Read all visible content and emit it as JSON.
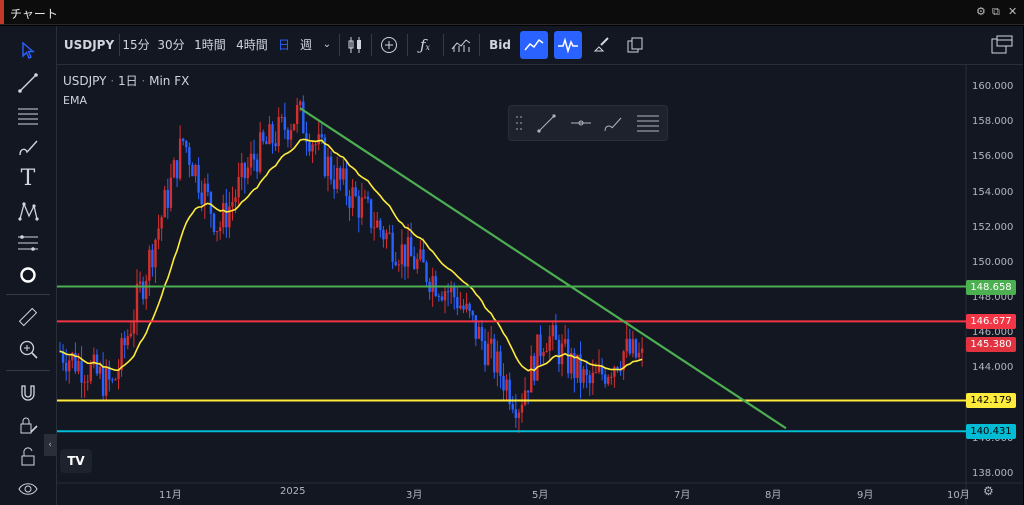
{
  "window": {
    "title": "チャート",
    "accent_color": "#c0392b"
  },
  "toolbar": {
    "symbol": "USDJPY",
    "intervals": [
      "15分",
      "30分",
      "1時間",
      "4時間",
      "日",
      "週"
    ],
    "active_interval": "日",
    "price_type": "Bid",
    "icons": [
      "candles-icon",
      "add-indicator-icon",
      "function-icon",
      "chart-style-icon",
      "line-chart-icon",
      "pulse-icon",
      "brush-icon",
      "copy-layout-icon",
      "layout-icon"
    ]
  },
  "left_toolbar": {
    "tools": [
      "cursor-icon",
      "trendline-icon",
      "horizontal-lines-icon",
      "brush-icon",
      "text-icon",
      "pattern-icon",
      "fib-icon",
      "circle-icon",
      "ruler-icon",
      "zoom-in-icon",
      "magnet-icon",
      "lock-edit-icon",
      "lock-icon",
      "eye-icon"
    ]
  },
  "legend": {
    "symbol": "USDJPY",
    "interval": "1日",
    "source": "Min FX",
    "indicator": "EMA"
  },
  "price_axis": {
    "ticks": [
      "160.000",
      "158.000",
      "156.000",
      "154.000",
      "152.000",
      "150.000",
      "148.000",
      "146.000",
      "144.000",
      "142.000",
      "140.000",
      "138.000"
    ]
  },
  "time_axis": {
    "ticks": [
      "11月",
      "2025",
      "3月",
      "5月",
      "7月",
      "8月",
      "9月",
      "10月"
    ]
  },
  "price_levels": [
    {
      "label": "148.658",
      "value": 148.658,
      "color": "#4caf50",
      "text_color": "#ffffff"
    },
    {
      "label": "146.677",
      "value": 146.677,
      "color": "#f23645",
      "text_color": "#ffffff"
    },
    {
      "label": "145.380",
      "value": 145.38,
      "color": "#e0323f",
      "text_color": "#ffffff"
    },
    {
      "label": "142.179",
      "value": 142.179,
      "color": "#ffeb3b",
      "text_color": "#000000"
    },
    {
      "label": "140.431",
      "value": 140.431,
      "color": "#00bcd4",
      "text_color": "#000000"
    }
  ],
  "trendline": {
    "color": "#4caf50",
    "from": [
      0.27,
      158.8
    ],
    "to": [
      0.81,
      140.6
    ]
  },
  "colors": {
    "up": "#d32f2f",
    "down": "#2962ff",
    "ema": "#ffeb3b",
    "active_tool": "#2962ff"
  },
  "logo_text": "TV"
}
